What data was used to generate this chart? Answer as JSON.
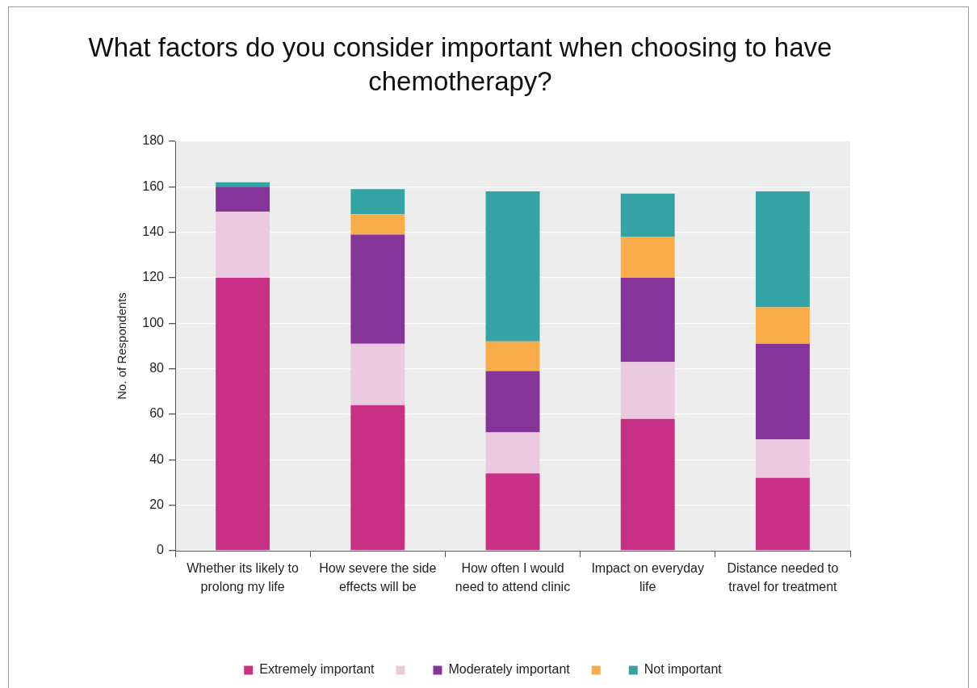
{
  "chart_data": {
    "type": "bar",
    "title": "What factors do you consider important when choosing to have chemotherapy?",
    "ylabel": "No. of Respondents",
    "categories": [
      "Whether its likely to prolong my life",
      "How severe the side effects will be",
      "How often I would need to attend clinic",
      "Impact on everyday life",
      "Distance needed to travel for treatment"
    ],
    "stacked": true,
    "series": [
      {
        "name": "Extremely important",
        "color": "#c83086",
        "values": [
          120,
          64,
          34,
          58,
          32
        ]
      },
      {
        "color": "#ebc9df",
        "values": [
          29,
          27,
          18,
          25,
          17
        ]
      },
      {
        "name": "Moderately important",
        "color": "#853499",
        "values": [
          11,
          48,
          27,
          37,
          42
        ]
      },
      {
        "color": "#f8ad4a",
        "values": [
          0,
          9,
          13,
          18,
          16
        ]
      },
      {
        "name": "Not important",
        "color": "#33a3a4",
        "values": [
          2,
          11,
          66,
          19,
          51
        ]
      }
    ],
    "ylim": [
      0,
      180
    ],
    "yticks": [
      0,
      20,
      40,
      60,
      80,
      100,
      120,
      140,
      160,
      180
    ],
    "grid": "y",
    "legend": "bottom"
  }
}
